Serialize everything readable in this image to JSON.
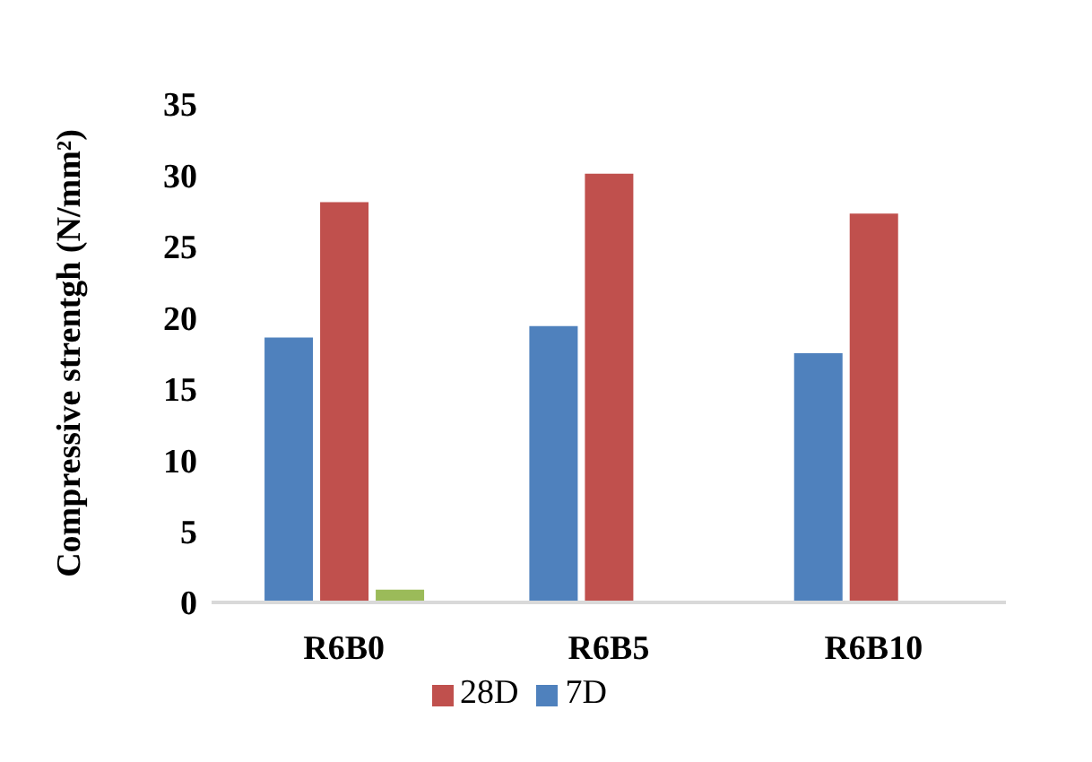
{
  "chart_data": {
    "type": "bar",
    "ylabel": "Compressive strentgh (N/mm²)",
    "categories": [
      "R6B0",
      "R6B5",
      "R6B10"
    ],
    "series": [
      {
        "name": "7D",
        "color": "#4f81bd",
        "values": [
          18.6,
          19.4,
          17.5
        ]
      },
      {
        "name": "28D",
        "color": "#c0504d",
        "values": [
          28.1,
          30.1,
          27.3
        ]
      },
      {
        "color": "#9bbb59",
        "values": [
          0.9,
          null,
          null
        ]
      }
    ],
    "ylim": [
      0,
      35
    ],
    "yticks": [
      0,
      5,
      10,
      15,
      20,
      25,
      30,
      35
    ],
    "grid": false,
    "legend": "bottom"
  }
}
